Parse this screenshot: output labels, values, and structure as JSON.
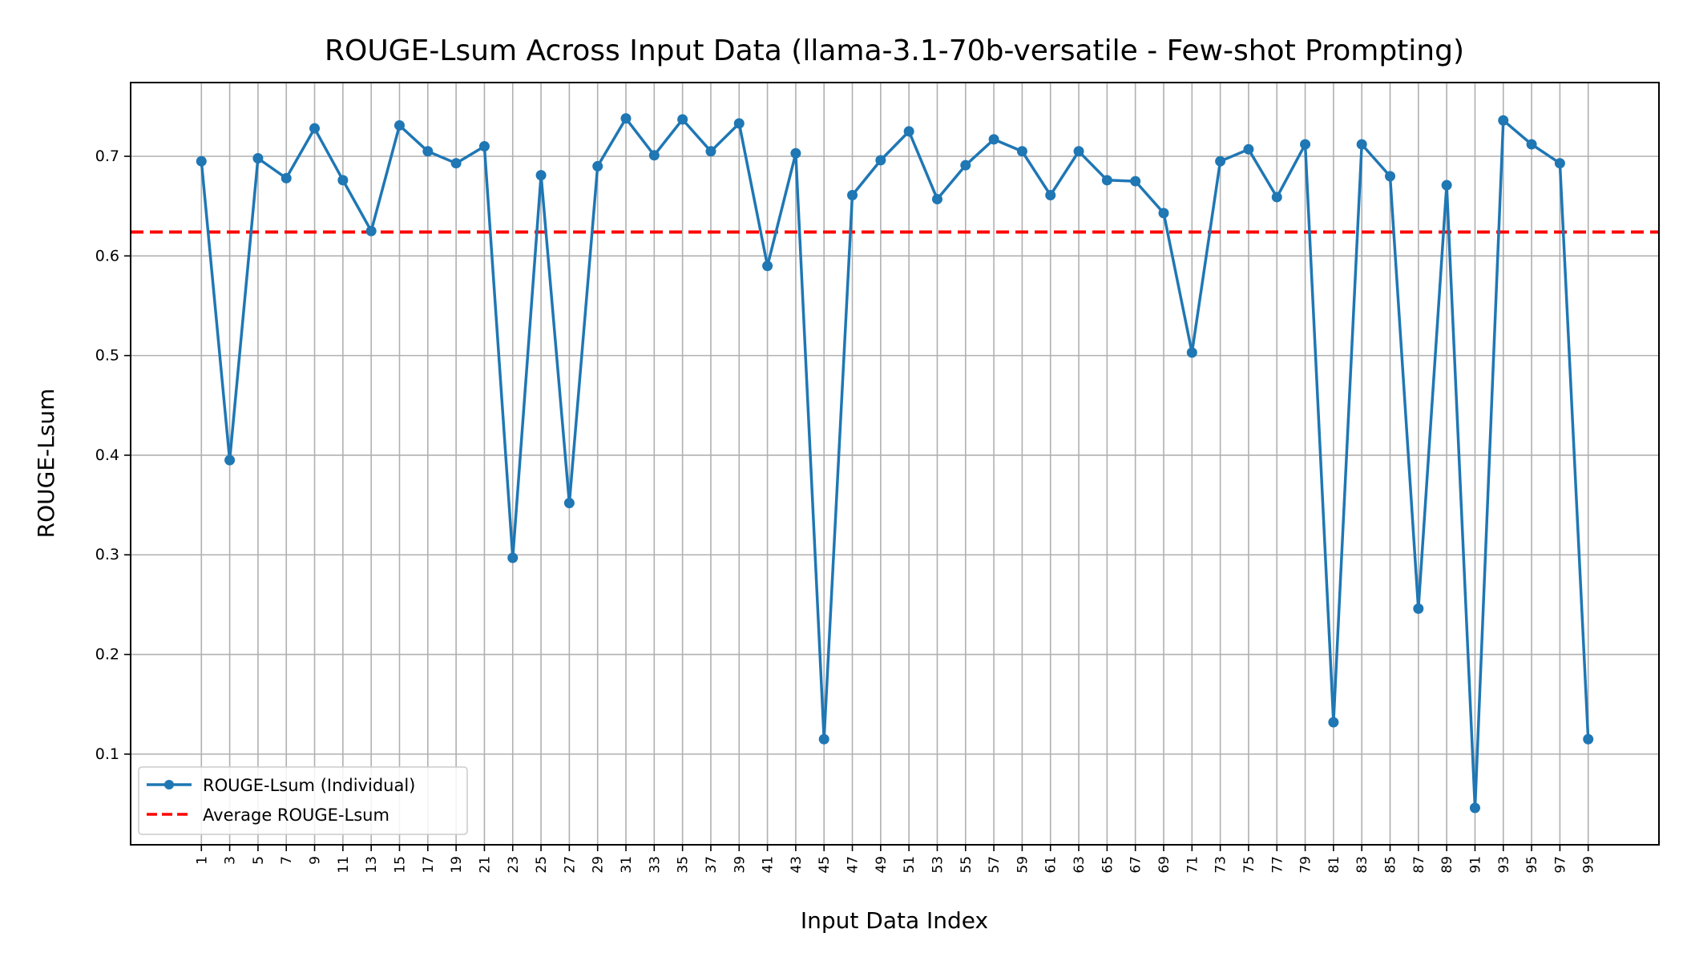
{
  "chart_data": {
    "type": "line",
    "title": "ROUGE-Lsum Across Input Data (llama-3.1-70b-versatile - Few-shot Prompting)",
    "xlabel": "Input Data Index",
    "ylabel": "ROUGE-Lsum",
    "x": [
      1,
      3,
      5,
      7,
      9,
      11,
      13,
      15,
      17,
      19,
      21,
      23,
      25,
      27,
      29,
      31,
      33,
      35,
      37,
      39,
      41,
      43,
      45,
      47,
      49,
      51,
      53,
      55,
      57,
      59,
      61,
      63,
      65,
      67,
      69,
      71,
      73,
      75,
      77,
      79,
      81,
      83,
      85,
      87,
      89,
      91,
      93,
      95,
      97,
      99
    ],
    "xticks": [
      "1",
      "3",
      "5",
      "7",
      "9",
      "11",
      "13",
      "15",
      "17",
      "19",
      "21",
      "23",
      "25",
      "27",
      "29",
      "31",
      "33",
      "35",
      "37",
      "39",
      "41",
      "43",
      "45",
      "47",
      "49",
      "51",
      "53",
      "55",
      "57",
      "59",
      "61",
      "63",
      "65",
      "67",
      "69",
      "71",
      "73",
      "75",
      "77",
      "79",
      "81",
      "83",
      "85",
      "87",
      "89",
      "91",
      "93",
      "95",
      "97",
      "99"
    ],
    "yticks": [
      "0.1",
      "0.2",
      "0.3",
      "0.4",
      "0.5",
      "0.6",
      "0.7"
    ],
    "xlim": [
      -4,
      104
    ],
    "ylim": [
      0.009,
      0.774
    ],
    "grid": true,
    "legend_position": "lower-left",
    "series": [
      {
        "name": "ROUGE-Lsum (Individual)",
        "color": "#1f77b4",
        "style": "line-with-markers",
        "values": [
          0.695,
          0.395,
          0.698,
          0.678,
          0.728,
          0.676,
          0.625,
          0.731,
          0.705,
          0.693,
          0.71,
          0.297,
          0.681,
          0.352,
          0.69,
          0.738,
          0.701,
          0.737,
          0.705,
          0.733,
          0.59,
          0.703,
          0.115,
          0.661,
          0.696,
          0.725,
          0.657,
          0.691,
          0.717,
          0.705,
          0.661,
          0.705,
          0.676,
          0.675,
          0.643,
          0.503,
          0.695,
          0.707,
          0.659,
          0.712,
          0.132,
          0.712,
          0.68,
          0.246,
          0.671,
          0.046,
          0.736,
          0.712,
          0.693,
          0.115
        ]
      },
      {
        "name": "Average ROUGE-Lsum",
        "color": "#ff0000",
        "style": "dashed",
        "value": 0.624
      }
    ]
  }
}
